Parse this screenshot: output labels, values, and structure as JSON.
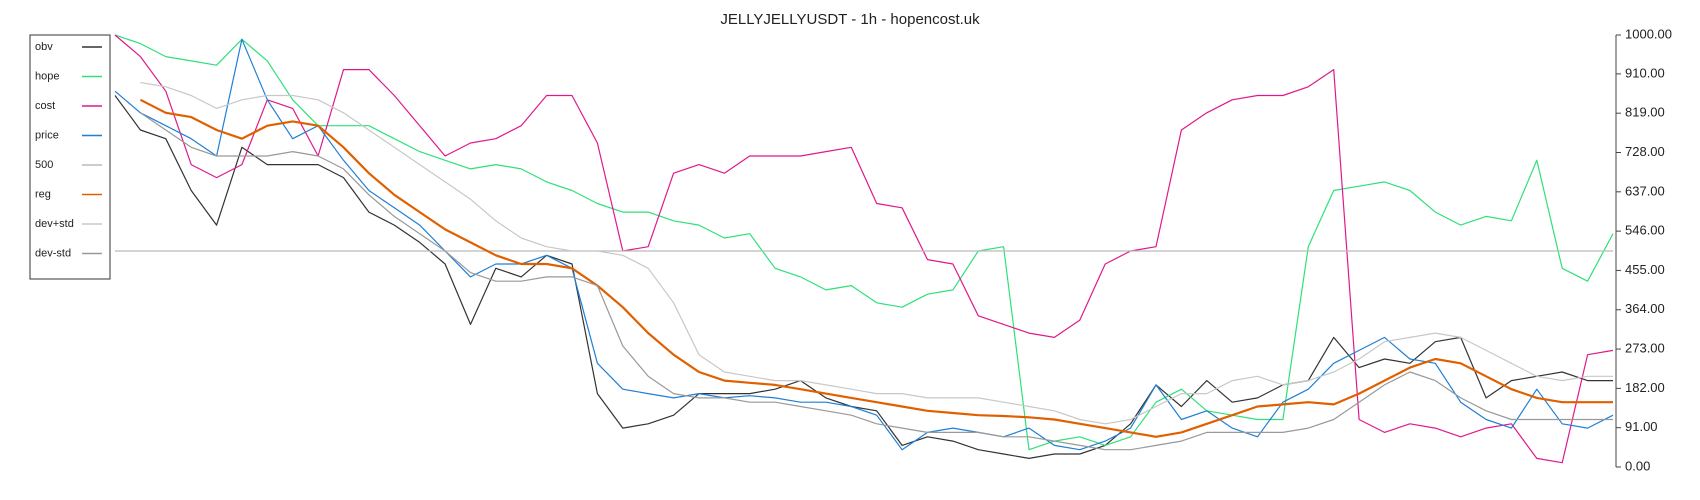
{
  "chart_data": {
    "type": "line",
    "title": "JELLYJELLYUSDT - 1h - hopencost.uk",
    "ylim": [
      0,
      1000
    ],
    "yticks": [
      {
        "value": 0,
        "label": "0.00"
      },
      {
        "value": 91,
        "label": "91.00"
      },
      {
        "value": 182,
        "label": "182.00"
      },
      {
        "value": 273,
        "label": "273.00"
      },
      {
        "value": 364,
        "label": "364.00"
      },
      {
        "value": 455,
        "label": "455.00"
      },
      {
        "value": 546,
        "label": "546.00"
      },
      {
        "value": 637,
        "label": "637.00"
      },
      {
        "value": 728,
        "label": "728.00"
      },
      {
        "value": 819,
        "label": "819.00"
      },
      {
        "value": 910,
        "label": "910.00"
      },
      {
        "value": 1000,
        "label": "1000.00"
      }
    ],
    "legend": "upper left",
    "series": [
      {
        "name": "obv",
        "color": "#333333",
        "values": [
          860,
          780,
          760,
          640,
          560,
          740,
          700,
          700,
          700,
          670,
          590,
          560,
          520,
          470,
          330,
          460,
          440,
          490,
          470,
          170,
          90,
          100,
          120,
          170,
          170,
          170,
          180,
          200,
          160,
          140,
          130,
          50,
          70,
          60,
          40,
          30,
          20,
          30,
          30,
          50,
          100,
          190,
          140,
          200,
          150,
          160,
          190,
          200,
          300,
          230,
          250,
          240,
          290,
          300,
          160,
          200,
          210,
          220,
          200,
          200
        ]
      },
      {
        "name": "hope",
        "color": "#2ee07a",
        "values": [
          1000,
          980,
          950,
          940,
          930,
          990,
          940,
          850,
          790,
          790,
          790,
          760,
          730,
          710,
          690,
          700,
          690,
          660,
          640,
          610,
          590,
          590,
          570,
          560,
          530,
          540,
          460,
          440,
          410,
          420,
          380,
          370,
          400,
          410,
          500,
          510,
          40,
          60,
          70,
          50,
          70,
          150,
          180,
          130,
          120,
          110,
          110,
          510,
          640,
          650,
          660,
          640,
          590,
          560,
          580,
          570,
          710,
          460,
          430,
          540
        ]
      },
      {
        "name": "cost",
        "color": "#e0198a",
        "values": [
          1000,
          950,
          870,
          700,
          670,
          700,
          850,
          830,
          720,
          920,
          920,
          860,
          790,
          720,
          750,
          760,
          790,
          860,
          860,
          750,
          500,
          510,
          680,
          700,
          680,
          720,
          720,
          720,
          730,
          740,
          610,
          600,
          480,
          470,
          350,
          330,
          310,
          300,
          340,
          470,
          500,
          510,
          780,
          820,
          850,
          860,
          860,
          880,
          920,
          110,
          80,
          100,
          90,
          70,
          90,
          100,
          20,
          10,
          260,
          270
        ]
      },
      {
        "name": "price",
        "color": "#1f7fd6",
        "values": [
          870,
          820,
          790,
          760,
          720,
          990,
          850,
          760,
          790,
          710,
          640,
          600,
          560,
          500,
          440,
          470,
          470,
          490,
          460,
          240,
          180,
          170,
          160,
          170,
          160,
          165,
          160,
          150,
          150,
          140,
          120,
          40,
          80,
          90,
          80,
          70,
          90,
          50,
          40,
          60,
          90,
          190,
          110,
          130,
          90,
          70,
          150,
          180,
          240,
          270,
          300,
          250,
          240,
          150,
          110,
          90,
          180,
          100,
          90,
          120
        ]
      },
      {
        "name": "500",
        "color": "#bbbbbb",
        "values": [
          500,
          500,
          500,
          500,
          500,
          500,
          500,
          500,
          500,
          500,
          500,
          500,
          500,
          500,
          500,
          500,
          500,
          500,
          500,
          500,
          500,
          500,
          500,
          500,
          500,
          500,
          500,
          500,
          500,
          500,
          500,
          500,
          500,
          500,
          500,
          500,
          500,
          500,
          500,
          500,
          500,
          500,
          500,
          500,
          500,
          500,
          500,
          500,
          500,
          500,
          500,
          500,
          500,
          500,
          500,
          500,
          500,
          500,
          500,
          500
        ]
      },
      {
        "name": "reg",
        "color": "#e06000",
        "values": [
          null,
          850,
          820,
          810,
          780,
          760,
          790,
          800,
          790,
          740,
          680,
          630,
          590,
          550,
          520,
          490,
          470,
          470,
          460,
          420,
          370,
          310,
          260,
          220,
          200,
          195,
          190,
          180,
          170,
          160,
          150,
          140,
          130,
          125,
          120,
          118,
          115,
          110,
          100,
          90,
          80,
          70,
          80,
          100,
          120,
          140,
          145,
          150,
          145,
          170,
          200,
          230,
          250,
          240,
          210,
          180,
          160,
          150,
          150,
          150
        ]
      },
      {
        "name": "dev+std",
        "color": "#c8c8c8",
        "values": [
          null,
          890,
          880,
          860,
          830,
          850,
          860,
          860,
          850,
          820,
          780,
          740,
          700,
          660,
          620,
          570,
          530,
          510,
          500,
          500,
          490,
          460,
          380,
          260,
          220,
          210,
          200,
          200,
          190,
          180,
          170,
          170,
          160,
          160,
          160,
          150,
          140,
          130,
          110,
          100,
          110,
          140,
          170,
          170,
          200,
          210,
          190,
          200,
          220,
          250,
          290,
          300,
          310,
          300,
          270,
          240,
          210,
          200,
          210,
          210
        ]
      },
      {
        "name": "dev-std",
        "color": "#999999",
        "values": [
          null,
          820,
          780,
          740,
          720,
          720,
          720,
          730,
          720,
          690,
          630,
          580,
          540,
          500,
          450,
          430,
          430,
          440,
          440,
          420,
          280,
          210,
          170,
          160,
          160,
          150,
          150,
          140,
          130,
          120,
          100,
          90,
          80,
          80,
          80,
          70,
          70,
          60,
          50,
          40,
          40,
          50,
          60,
          80,
          80,
          80,
          80,
          90,
          110,
          150,
          190,
          220,
          200,
          160,
          130,
          110,
          110,
          110,
          110,
          110
        ]
      }
    ]
  }
}
